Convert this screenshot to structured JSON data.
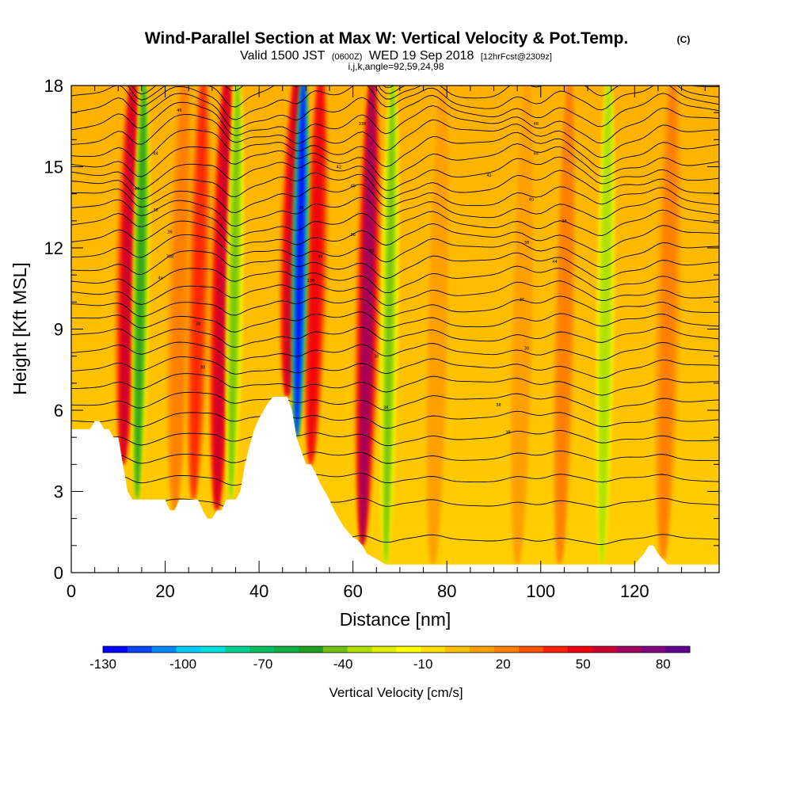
{
  "chart_data": {
    "type": "heatmap",
    "title": "Wind-Parallel Section at Max W: Vertical Velocity & Pot.Temp.",
    "title_mark": "(C)",
    "subtitle_main_1": "Valid 1500 JST",
    "subtitle_small_1": "(0600Z)",
    "subtitle_main_2": "WED 19 Sep 2018",
    "subtitle_small_2": "[12hrFcst@2309z]",
    "subtitle_2": "i,j,k,angle=92,59,24,98",
    "xlabel": "Distance [nm]",
    "ylabel": "Height [Kft MSL]",
    "xlim": [
      0,
      138
    ],
    "ylim": [
      0,
      18
    ],
    "x_ticks": [
      0,
      20,
      40,
      60,
      80,
      100,
      120
    ],
    "y_ticks": [
      0,
      3,
      6,
      9,
      12,
      15,
      18
    ],
    "colorbar": {
      "label": "Vertical Velocity [cm/s]",
      "range": [
        -130,
        90
      ],
      "tick_values": [
        -130,
        -100,
        -70,
        -40,
        -10,
        20,
        50,
        80
      ],
      "colors": [
        "#0000ff",
        "#0044ff",
        "#0088ff",
        "#00ccff",
        "#00e0e0",
        "#00d090",
        "#00c060",
        "#10b040",
        "#20a020",
        "#70c010",
        "#b0e000",
        "#e0f000",
        "#ffff00",
        "#ffe000",
        "#ffc000",
        "#ffa000",
        "#ff8000",
        "#ff5000",
        "#ff2000",
        "#ee0010",
        "#cc0030",
        "#a00060",
        "#800080",
        "#600090"
      ]
    },
    "updrafts": [
      {
        "x": 11,
        "peak_cm_s": 55
      },
      {
        "x": 22,
        "peak_cm_s": 25
      },
      {
        "x": 26,
        "peak_cm_s": 35
      },
      {
        "x": 31,
        "peak_cm_s": 60
      },
      {
        "x": 46,
        "peak_cm_s": 60
      },
      {
        "x": 51,
        "peak_cm_s": 45
      },
      {
        "x": 62,
        "peak_cm_s": 65
      },
      {
        "x": 77,
        "peak_cm_s": 15
      },
      {
        "x": 95,
        "peak_cm_s": 15
      },
      {
        "x": 104,
        "peak_cm_s": 20
      },
      {
        "x": 126,
        "peak_cm_s": 25
      }
    ],
    "downdrafts": [
      {
        "x": 14,
        "peak_cm_s": -50
      },
      {
        "x": 34,
        "peak_cm_s": -45
      },
      {
        "x": 48,
        "peak_cm_s": -130
      },
      {
        "x": 67,
        "peak_cm_s": -40
      },
      {
        "x": 113,
        "peak_cm_s": -35
      }
    ],
    "terrain_kft": {
      "x": [
        0,
        4,
        5,
        6,
        7,
        8,
        9,
        10,
        11,
        12,
        13,
        14,
        15,
        16,
        17,
        18,
        19,
        20,
        21,
        22,
        23,
        24,
        25,
        26,
        27,
        28,
        29,
        30,
        31,
        32,
        33,
        34,
        35,
        36,
        37,
        38,
        39,
        40,
        41,
        42,
        43,
        44,
        45,
        46,
        47,
        48,
        49,
        50,
        51,
        52,
        53,
        54,
        55,
        56,
        57,
        58,
        59,
        60,
        61,
        62,
        63,
        64,
        65,
        66,
        67,
        68,
        69,
        70,
        71,
        72,
        120,
        121,
        122,
        123,
        124,
        125,
        126,
        127,
        138
      ],
      "height": [
        5.3,
        5.3,
        5.6,
        5.6,
        5.3,
        5.3,
        5.0,
        5.0,
        4.0,
        3.0,
        2.7,
        2.7,
        2.7,
        2.7,
        2.7,
        2.7,
        2.7,
        2.7,
        2.3,
        2.3,
        2.7,
        2.7,
        2.7,
        2.7,
        2.7,
        2.3,
        2.0,
        2.0,
        2.3,
        2.3,
        2.7,
        2.7,
        2.7,
        3.0,
        4.0,
        4.7,
        5.3,
        5.7,
        6.0,
        6.3,
        6.5,
        6.5,
        6.5,
        6.5,
        6.0,
        5.0,
        4.5,
        4.0,
        4.0,
        3.7,
        3.3,
        3.0,
        2.7,
        2.3,
        2.0,
        1.7,
        1.5,
        1.3,
        1.2,
        1.0,
        0.7,
        0.6,
        0.5,
        0.4,
        0.3,
        0.3,
        0.3,
        0.3,
        0.3,
        0.3,
        0.3,
        0.5,
        0.7,
        1.0,
        1.0,
        0.7,
        0.5,
        0.3,
        0.3
      ]
    },
    "theta_contours": {
      "count": 32,
      "labeled": [
        {
          "x": 93,
          "y": 5.2,
          "label": "38"
        },
        {
          "x": 67,
          "y": 6.1,
          "label": "38"
        },
        {
          "x": 91,
          "y": 6.2,
          "label": "38"
        },
        {
          "x": 28,
          "y": 7.6,
          "label": "30"
        },
        {
          "x": 65,
          "y": 8.0,
          "label": "30"
        },
        {
          "x": 97,
          "y": 8.3,
          "label": "30"
        },
        {
          "x": 27,
          "y": 9.2,
          "label": "38"
        },
        {
          "x": 96,
          "y": 10.1,
          "label": "30"
        },
        {
          "x": 51,
          "y": 10.8,
          "label": "100"
        },
        {
          "x": 19,
          "y": 10.9,
          "label": "4x"
        },
        {
          "x": 21,
          "y": 11.7,
          "label": "308"
        },
        {
          "x": 53,
          "y": 11.7,
          "label": "44"
        },
        {
          "x": 103,
          "y": 11.5,
          "label": "44"
        },
        {
          "x": 64,
          "y": 11.9,
          "label": "30"
        },
        {
          "x": 21,
          "y": 12.6,
          "label": "36"
        },
        {
          "x": 97,
          "y": 12.2,
          "label": "38"
        },
        {
          "x": 60,
          "y": 12.5,
          "label": "38"
        },
        {
          "x": 105,
          "y": 13.0,
          "label": "38"
        },
        {
          "x": 18,
          "y": 13.4,
          "label": "36"
        },
        {
          "x": 49,
          "y": 13.5,
          "label": "36"
        },
        {
          "x": 98,
          "y": 13.8,
          "label": "40"
        },
        {
          "x": 14,
          "y": 14.2,
          "label": "40"
        },
        {
          "x": 60,
          "y": 14.3,
          "label": "40"
        },
        {
          "x": 89,
          "y": 14.7,
          "label": "42"
        },
        {
          "x": 57,
          "y": 15.0,
          "label": "42"
        },
        {
          "x": 18,
          "y": 15.5,
          "label": "44"
        },
        {
          "x": 99,
          "y": 15.5,
          "label": "44"
        },
        {
          "x": 62,
          "y": 16.6,
          "label": "338"
        },
        {
          "x": 99,
          "y": 16.6,
          "label": "48"
        },
        {
          "x": 23,
          "y": 17.1,
          "label": "46"
        }
      ]
    }
  }
}
